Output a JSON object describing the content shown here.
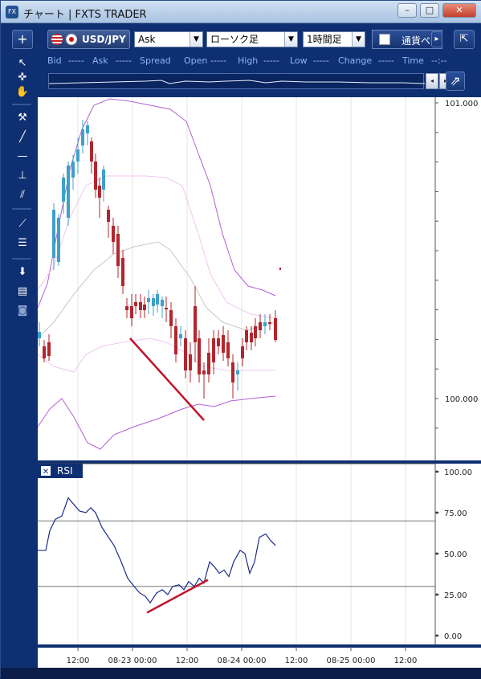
{
  "window": {
    "title": "チャート | FXTS TRADER",
    "app_icon": "FX"
  },
  "toolbar": {
    "add_label": "+",
    "pair": "USD/JPY",
    "price_type": "Ask",
    "chart_type": "ローソク足",
    "timeframe": "1時間足",
    "currency_label": "通貨ペ",
    "next_label": "▸",
    "expand_label": "⇱"
  },
  "quote": {
    "bid_label": "Bid",
    "bid_value": "-----",
    "ask_label": "Ask",
    "ask_value": "-----",
    "spread_label": "Spread",
    "open_label": "Open",
    "open_value": "-----",
    "high_label": "High",
    "high_value": "-----",
    "low_label": "Low",
    "low_value": "-----",
    "change_label": "Change",
    "change_value": "-----",
    "time_label": "Time",
    "time_value": "--:--"
  },
  "price_axis": {
    "top": "101.000",
    "bottom": "100.000"
  },
  "rsi": {
    "label": "RSI",
    "levels": [
      "100.00",
      "75.00",
      "50.00",
      "25.00",
      "0.00"
    ],
    "overbought": 70,
    "oversold": 30
  },
  "time_axis": [
    "12:00",
    "08-23 00:00",
    "12:00",
    "08-24 00:00",
    "12:00",
    "08-25 00:00",
    "12:00"
  ],
  "colors": {
    "up": "#3fa0c8",
    "down": "#b2262e",
    "bb_outer": "#b35fd1",
    "bb_inner": "#f0c7f0",
    "ma": "#c8c8c8",
    "rsi": "#1a2a8c",
    "trend": "#c0142d"
  },
  "sidebar_icons": [
    "cursor-icon",
    "crosshair-icon",
    "hand-icon",
    "hammer-icon",
    "trendline-icon",
    "horizontal-line-icon",
    "vertical-line-icon",
    "channel-icon",
    "fan-icon",
    "fibonacci-icon",
    "download-icon",
    "list-icon",
    "camera-icon"
  ]
}
